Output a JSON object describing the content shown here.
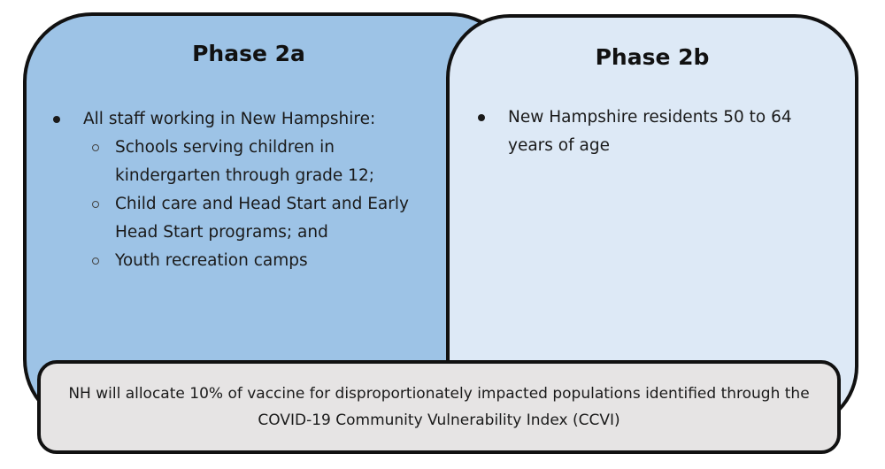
{
  "phase_a": {
    "title": "Phase 2a",
    "bullet": "All staff working in New Hampshire:",
    "sub_items": [
      "Schools serving children in kindergarten through grade 12;",
      "Child care and Head Start and Early Head Start programs; and",
      "Youth recreation camps"
    ],
    "color": "#9dc3e6"
  },
  "phase_b": {
    "title": "Phase 2b",
    "bullet": "New Hampshire residents 50 to 64 years of age",
    "color": "#dde9f6"
  },
  "footer": {
    "text": "NH will allocate 10% of vaccine for disproportionately impacted populations identified through the COVID-19 Community Vulnerability Index (CCVI)",
    "color": "#e6e4e4"
  }
}
